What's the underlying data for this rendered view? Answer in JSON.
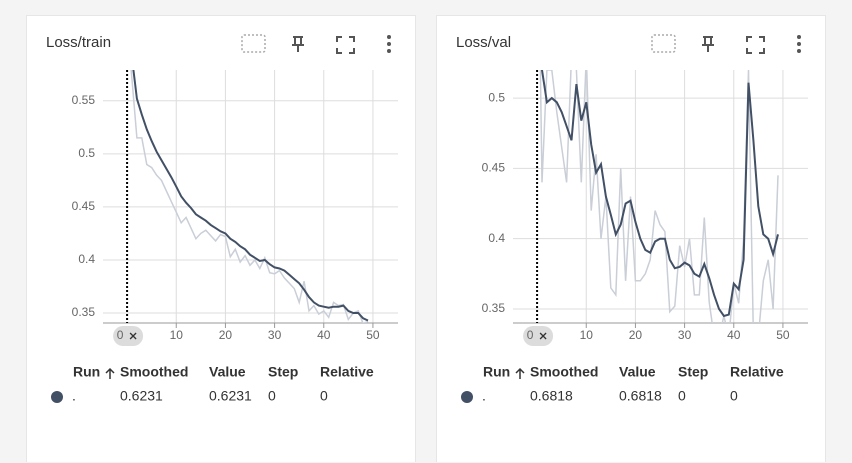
{
  "chart_data": [
    {
      "type": "line",
      "title": "Loss/train",
      "x": [
        0,
        1,
        2,
        3,
        4,
        5,
        6,
        7,
        8,
        9,
        10,
        11,
        12,
        13,
        14,
        15,
        16,
        17,
        18,
        19,
        20,
        21,
        22,
        23,
        24,
        25,
        26,
        27,
        28,
        29,
        30,
        31,
        32,
        33,
        34,
        35,
        36,
        37,
        38,
        39,
        40,
        41,
        42,
        43,
        44,
        45,
        46,
        47,
        48,
        49
      ],
      "series": [
        {
          "color": "#c9ced7",
          "values": [
            0.6231,
            0.57,
            0.515,
            0.515,
            0.49,
            0.487,
            0.48,
            0.475,
            0.465,
            0.455,
            0.445,
            0.435,
            0.44,
            0.43,
            0.42,
            0.425,
            0.428,
            0.423,
            0.418,
            0.424,
            0.422,
            0.403,
            0.41,
            0.398,
            0.404,
            0.395,
            0.4,
            0.392,
            0.402,
            0.388,
            0.387,
            0.39,
            0.383,
            0.378,
            0.373,
            0.36,
            0.38,
            0.352,
            0.357,
            0.349,
            0.352,
            0.346,
            0.36,
            0.357,
            0.358,
            0.344,
            0.35,
            0.352,
            0.34,
            0.342
          ]
        },
        {
          "color": "#425066",
          "values": [
            0.6231,
            0.59,
            0.552,
            0.537,
            0.523,
            0.512,
            0.502,
            0.494,
            0.486,
            0.478,
            0.469,
            0.46,
            0.454,
            0.449,
            0.443,
            0.44,
            0.437,
            0.433,
            0.43,
            0.427,
            0.425,
            0.42,
            0.417,
            0.413,
            0.41,
            0.405,
            0.402,
            0.399,
            0.4,
            0.396,
            0.393,
            0.392,
            0.39,
            0.386,
            0.382,
            0.378,
            0.372,
            0.365,
            0.36,
            0.357,
            0.356,
            0.355,
            0.356,
            0.356,
            0.357,
            0.352,
            0.35,
            0.35,
            0.345,
            0.343
          ]
        }
      ],
      "xlim": [
        -4.9,
        55.1
      ],
      "xticks": [
        10,
        20,
        30,
        40,
        50
      ],
      "ylim": [
        0.3406,
        0.579
      ],
      "yticks": [
        0.35,
        0.4,
        0.45,
        0.5,
        0.55
      ],
      "grid": true,
      "step_marker": 0,
      "table": {
        "headers": [
          "Run",
          "Smoothed",
          "Value",
          "Step",
          "Relative"
        ],
        "rows": [
          [
            ".",
            0.6231,
            0.6231,
            0,
            0
          ]
        ]
      }
    },
    {
      "type": "line",
      "title": "Loss/val",
      "x": [
        0,
        1,
        2,
        3,
        4,
        5,
        6,
        7,
        8,
        9,
        10,
        11,
        12,
        13,
        14,
        15,
        16,
        17,
        18,
        19,
        20,
        21,
        22,
        23,
        24,
        25,
        26,
        27,
        28,
        29,
        30,
        31,
        32,
        33,
        34,
        35,
        36,
        37,
        38,
        39,
        40,
        41,
        42,
        43,
        44,
        45,
        46,
        47,
        48,
        49
      ],
      "series": [
        {
          "color": "#c9ced7",
          "values": [
            0.6818,
            0.44,
            0.52,
            0.52,
            0.49,
            0.465,
            0.44,
            0.53,
            0.52,
            0.44,
            0.53,
            0.42,
            0.46,
            0.4,
            0.43,
            0.365,
            0.36,
            0.45,
            0.37,
            0.43,
            0.37,
            0.37,
            0.375,
            0.385,
            0.42,
            0.41,
            0.405,
            0.348,
            0.352,
            0.395,
            0.38,
            0.4,
            0.36,
            0.36,
            0.415,
            0.355,
            0.33,
            0.33,
            0.345,
            0.33,
            0.368,
            0.354,
            0.4,
            0.52,
            0.33,
            0.33,
            0.37,
            0.385,
            0.35,
            0.445
          ]
        },
        {
          "color": "#425066",
          "values": [
            0.6818,
            0.52,
            0.497,
            0.5,
            0.497,
            0.49,
            0.48,
            0.47,
            0.51,
            0.484,
            0.497,
            0.467,
            0.447,
            0.453,
            0.43,
            0.417,
            0.403,
            0.41,
            0.425,
            0.427,
            0.412,
            0.4,
            0.392,
            0.39,
            0.398,
            0.4,
            0.4,
            0.385,
            0.379,
            0.38,
            0.383,
            0.381,
            0.375,
            0.373,
            0.382,
            0.372,
            0.36,
            0.35,
            0.345,
            0.346,
            0.368,
            0.364,
            0.385,
            0.511,
            0.47,
            0.423,
            0.403,
            0.4,
            0.389,
            0.403
          ]
        }
      ],
      "xlim": [
        -4.9,
        55.1
      ],
      "xticks": [
        10,
        20,
        30,
        40,
        50
      ],
      "ylim": [
        0.34,
        0.52
      ],
      "yticks": [
        0.35,
        0.4,
        0.45,
        0.5
      ],
      "grid": true,
      "step_marker": 0,
      "table": {
        "headers": [
          "Run",
          "Smoothed",
          "Value",
          "Step",
          "Relative"
        ],
        "rows": [
          [
            ".",
            0.6818,
            0.6818,
            0,
            0
          ]
        ]
      }
    }
  ]
}
